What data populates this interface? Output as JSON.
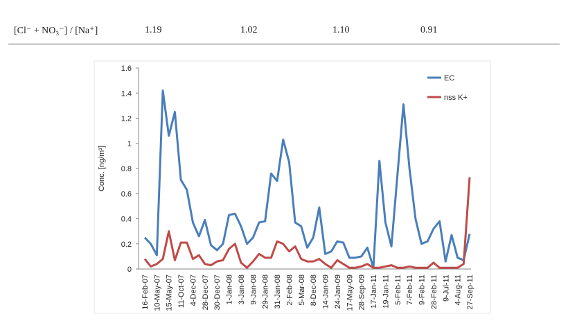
{
  "table_row": {
    "label": "[Cl⁻ + NO₃⁻] / [Na⁺]",
    "cells": [
      "1.19",
      "1.02",
      "1.10",
      "0.91"
    ]
  },
  "chart_data": {
    "type": "line",
    "y_label": "Conc. [ng/m³]",
    "categories": [
      "16-Feb-07",
      null,
      "10-May-07",
      null,
      "15-May-07",
      null,
      "11-Oct-07",
      null,
      "4-Dec-07",
      null,
      "28-Dec-07",
      null,
      "30-Dec-07",
      null,
      "1-Jan-08",
      null,
      "3-Jan-08",
      null,
      "9-Jan-08",
      null,
      "29-Jan-08",
      null,
      "31-Jan-08",
      null,
      "2-Feb-08",
      null,
      "5-Mar-08",
      null,
      "8-Dec-08",
      null,
      "14-Jan-09",
      null,
      "24-Jan-09",
      null,
      "17-May-09",
      null,
      "28-Sep-09",
      null,
      "17-Jan-11",
      null,
      "19-Jan-11",
      null,
      "5-Feb-11",
      null,
      "7-Feb-11",
      null,
      "9-Feb-11",
      null,
      "28-Feb-11",
      null,
      "9-Jul-11",
      null,
      "4-Aug-11",
      null,
      "27-Sep-11"
    ],
    "series": [
      {
        "name": "EC",
        "color": "#4a7ebb",
        "values": [
          0.25,
          0.2,
          0.11,
          1.42,
          1.06,
          1.25,
          0.71,
          0.63,
          0.37,
          0.26,
          0.39,
          0.19,
          0.15,
          0.2,
          0.43,
          0.44,
          0.34,
          0.2,
          0.25,
          0.37,
          0.38,
          0.76,
          0.7,
          1.03,
          0.85,
          0.37,
          0.34,
          0.17,
          0.25,
          0.49,
          0.12,
          0.14,
          0.22,
          0.21,
          0.09,
          0.09,
          0.1,
          0.17,
          0.01,
          0.86,
          0.37,
          0.18,
          0.75,
          1.31,
          0.8,
          0.4,
          0.2,
          0.22,
          0.32,
          0.38,
          0.06,
          0.27,
          0.09,
          0.07,
          0.28
        ]
      },
      {
        "name": "nss K+",
        "color": "#be4b48",
        "values": [
          0.08,
          0.02,
          0.04,
          0.08,
          0.3,
          0.07,
          0.21,
          0.21,
          0.08,
          0.11,
          0.04,
          0.03,
          0.06,
          0.07,
          0.16,
          0.2,
          0.05,
          0.01,
          0.06,
          0.12,
          0.09,
          0.09,
          0.22,
          0.2,
          0.14,
          0.18,
          0.08,
          0.06,
          0.06,
          0.08,
          0.04,
          0.01,
          0.07,
          0.04,
          0.01,
          0.01,
          0.02,
          0.04,
          0.01,
          0.01,
          0.02,
          0.03,
          0.01,
          0.01,
          0.02,
          0.01,
          0.01,
          0.01,
          0.05,
          0.01,
          0.01,
          0.01,
          0.01,
          0.04,
          0.73
        ]
      }
    ],
    "ylim": [
      0,
      1.6
    ],
    "yticks": [
      0,
      0.2,
      0.4,
      0.6,
      0.8,
      1,
      1.2,
      1.4,
      1.6
    ],
    "grid": false,
    "legend": "top-right"
  }
}
